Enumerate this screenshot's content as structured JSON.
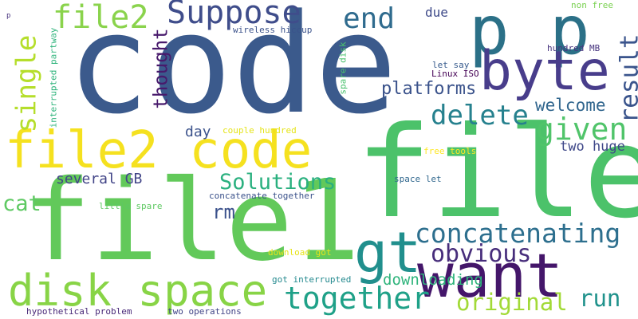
{
  "words": [
    {
      "text": "code",
      "color": "#3b5a8c"
    },
    {
      "text": "file",
      "color": "#4cc26a"
    },
    {
      "text": "file1",
      "color": "#62c95a"
    },
    {
      "text": "p p",
      "color": "#2b7087"
    },
    {
      "text": "file2 code",
      "color": "#f5e11f"
    },
    {
      "text": "byte",
      "color": "#483d8b"
    },
    {
      "text": "want",
      "color": "#44166a"
    },
    {
      "text": "disk space",
      "color": "#88d446"
    },
    {
      "text": "gt",
      "color": "#218f8d"
    },
    {
      "text": "file2",
      "color": "#8ad34c"
    },
    {
      "text": "Suppose",
      "color": "#3f4d8b"
    },
    {
      "text": "end",
      "color": "#2f6b8e"
    },
    {
      "text": "together",
      "color": "#1fa188"
    },
    {
      "text": "concatenating",
      "color": "#2d6f8e"
    },
    {
      "text": "delete",
      "color": "#26818e"
    },
    {
      "text": "given",
      "color": "#50c46a"
    },
    {
      "text": "single",
      "color": "#b5de2b"
    },
    {
      "text": "result",
      "color": "#3a548c"
    },
    {
      "text": "obvious",
      "color": "#472d7b"
    },
    {
      "text": "original",
      "color": "#a2da37"
    },
    {
      "text": "Solutions",
      "color": "#2ab07f"
    },
    {
      "text": "platforms",
      "color": "#3a528b"
    },
    {
      "text": "run",
      "color": "#20928c"
    },
    {
      "text": "welcome",
      "color": "#31668e"
    },
    {
      "text": "thought",
      "color": "#481a6c"
    },
    {
      "text": "cat",
      "color": "#5ec962"
    },
    {
      "text": "rm",
      "color": "#3b518b"
    },
    {
      "text": "downloading",
      "color": "#2fb47c"
    },
    {
      "text": "several GB",
      "color": "#414487"
    },
    {
      "text": "two huge",
      "color": "#3f4889"
    },
    {
      "text": "day",
      "color": "#3b528b"
    },
    {
      "text": "due",
      "color": "#3e4a89"
    },
    {
      "text": "non free",
      "color": "#7ad151"
    },
    {
      "text": "wireless hiccup",
      "color": "#3b528b"
    },
    {
      "text": "interrupted partway",
      "color": "#2fb47c"
    },
    {
      "text": "spare disk",
      "color": "#4ac16d"
    },
    {
      "text": "hundred MB",
      "color": "#46337e"
    },
    {
      "text": "let say",
      "color": "#375b8d"
    },
    {
      "text": "Linux ISO",
      "color": "#440154"
    },
    {
      "text": "couple hundred",
      "color": "#e5e419"
    },
    {
      "text": "free tools",
      "color": "#fde725"
    },
    {
      "text": "space let",
      "color": "#31688e"
    },
    {
      "text": "concatenate together",
      "color": "#3b528b"
    },
    {
      "text": "little spare",
      "color": "#5ec962"
    },
    {
      "text": "download got",
      "color": "#e7e419"
    },
    {
      "text": "got interrupted",
      "color": "#23898e"
    },
    {
      "text": "hypothetical problem",
      "color": "#482878"
    },
    {
      "text": "two operations",
      "color": "#414487"
    },
    {
      "text": "p",
      "color": "#46327e"
    }
  ]
}
